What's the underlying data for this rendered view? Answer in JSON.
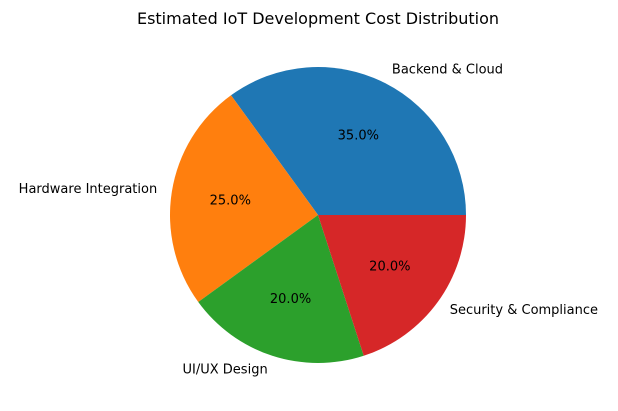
{
  "chart_data": {
    "type": "pie",
    "title": "Estimated IoT Development Cost Distribution",
    "categories": [
      "Backend & Cloud",
      "Hardware Integration",
      "UI/UX Design",
      "Security & Compliance"
    ],
    "values": [
      35,
      25,
      20,
      20
    ],
    "percent_labels": [
      "35.0%",
      "25.0%",
      "20.0%",
      "20.0%"
    ],
    "colors": [
      "#1f77b4",
      "#ff7f0e",
      "#2ca02c",
      "#d62728"
    ],
    "start_angle_deg": 0,
    "direction": "counterclockwise"
  }
}
